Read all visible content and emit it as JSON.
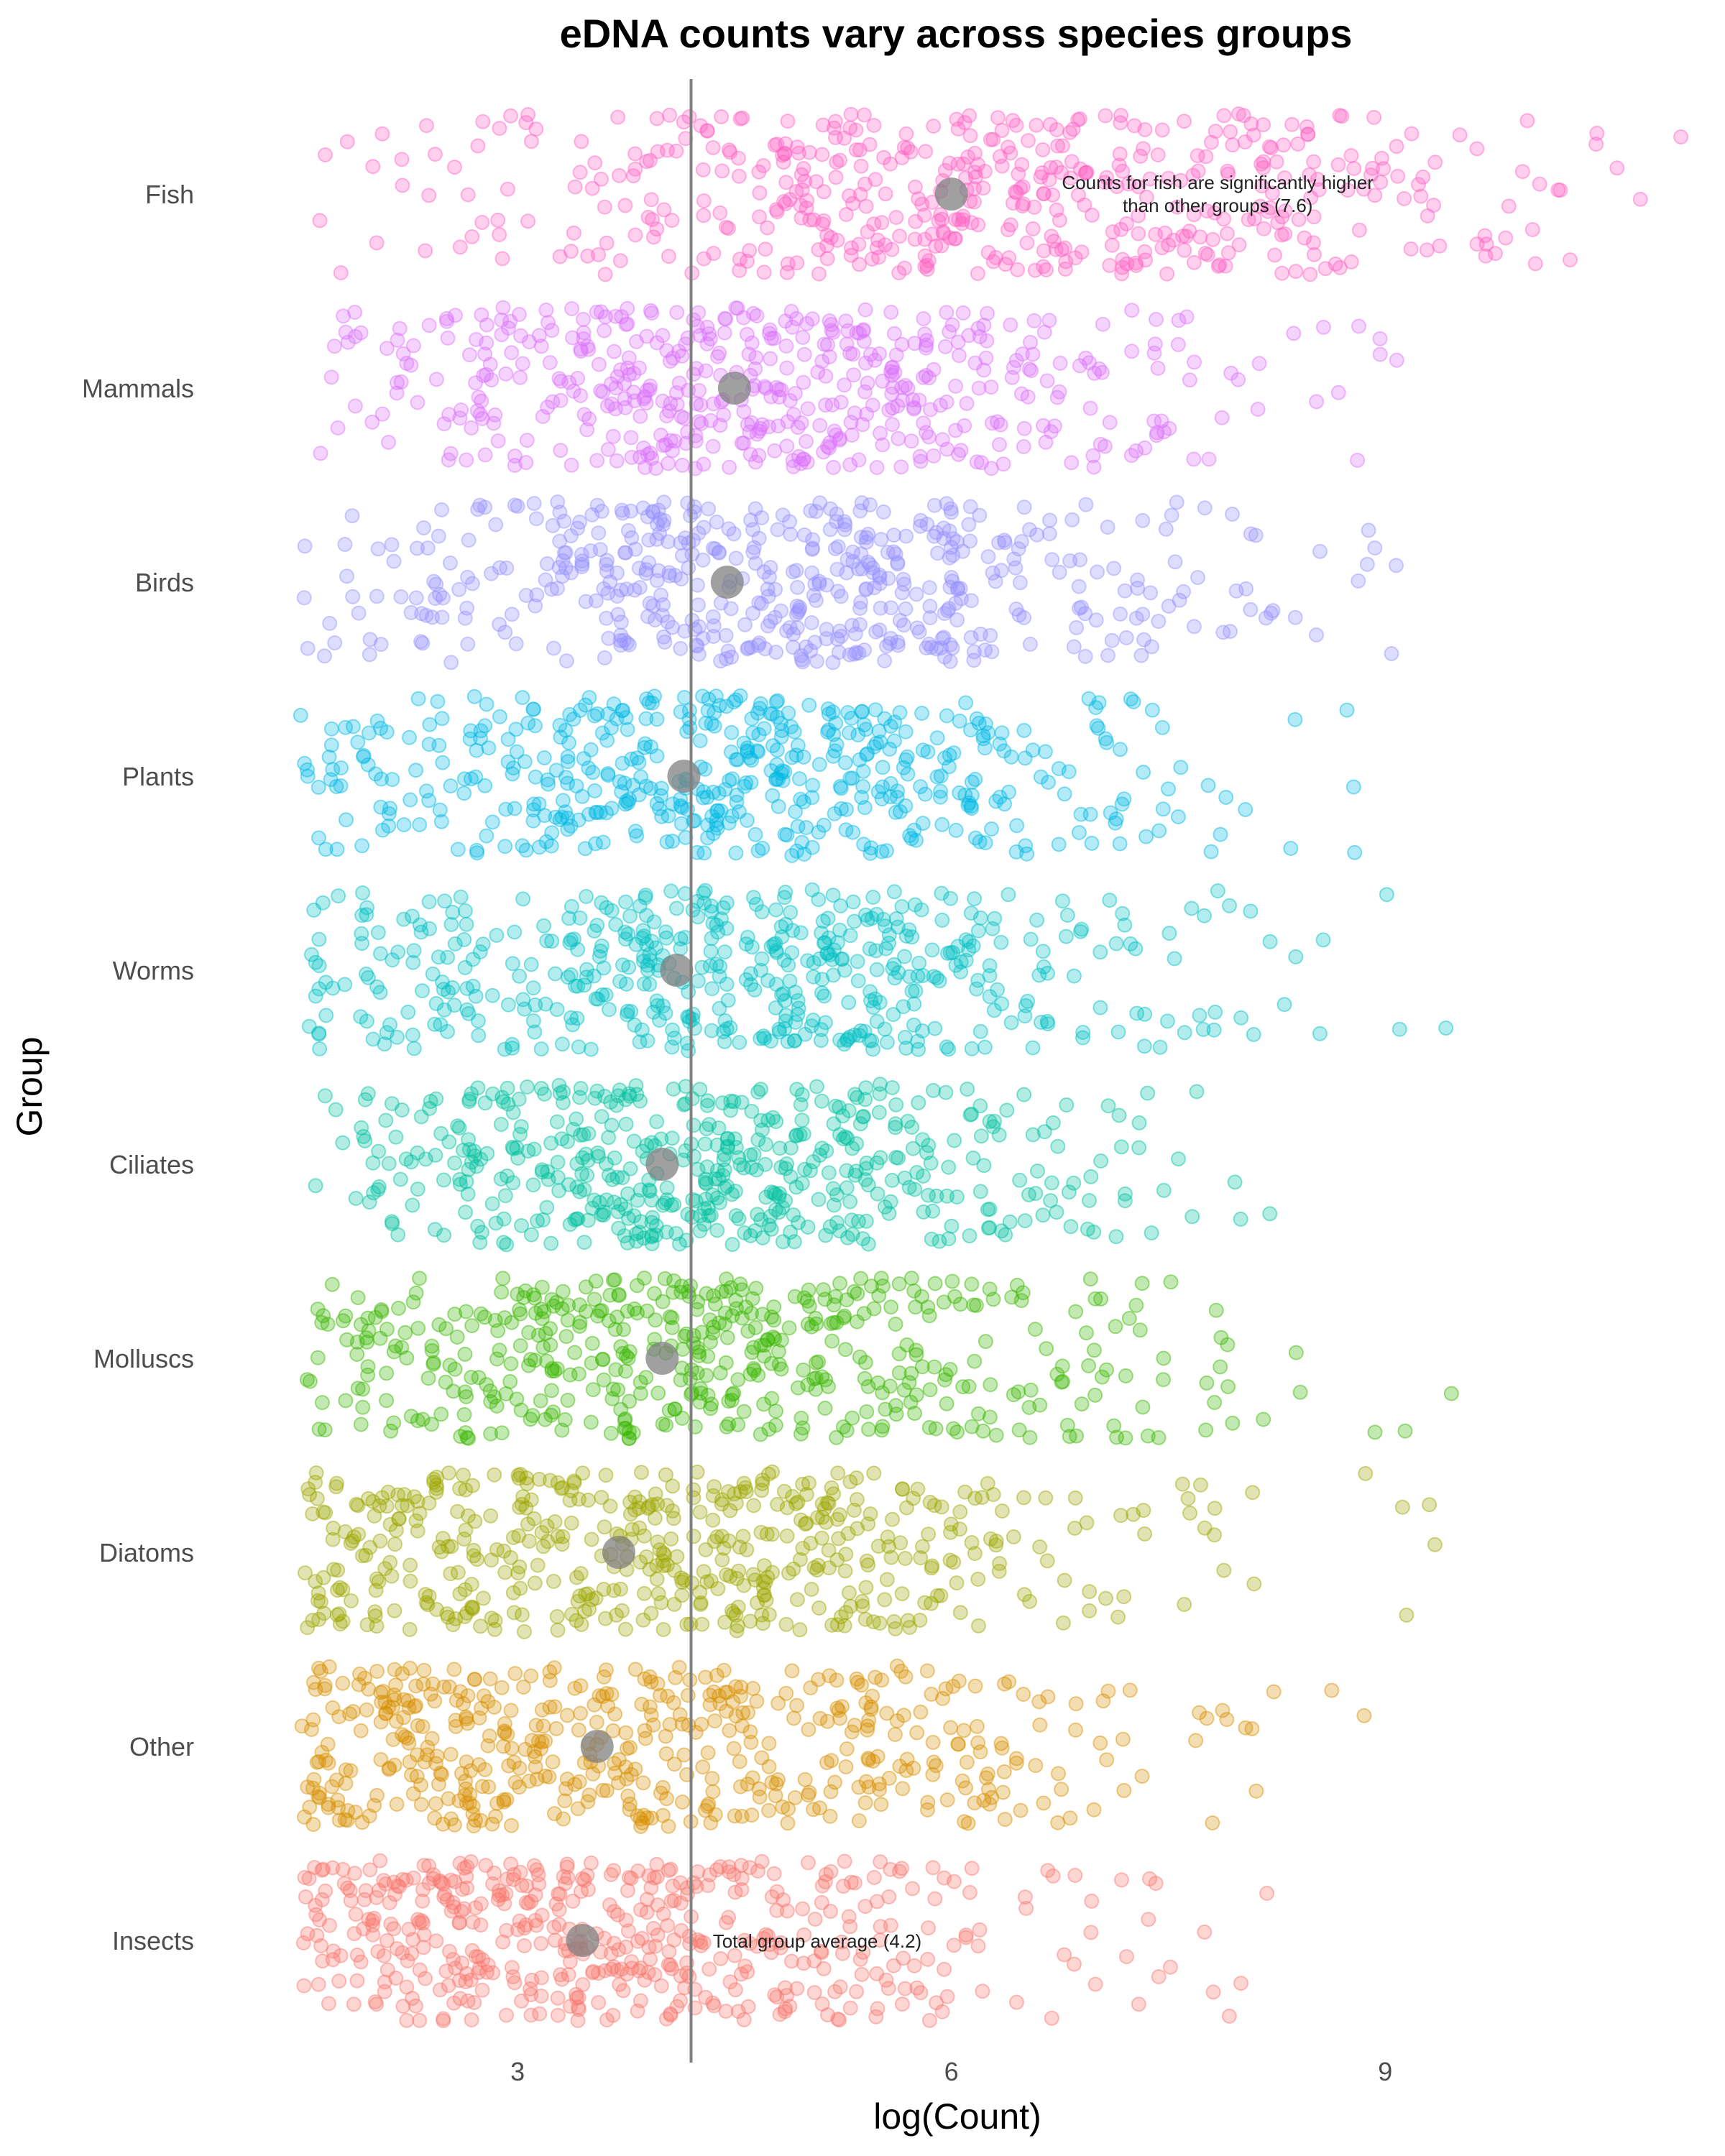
{
  "chart_data": {
    "type": "scatter",
    "subtype": "jittered strip plot with group means",
    "title": "eDNA counts vary across species groups",
    "xlabel": "log(Count)",
    "ylabel": "Group",
    "xlim": [
      1.3,
      11.2
    ],
    "x_ticks": [
      3,
      6,
      9
    ],
    "grid": false,
    "categories": [
      "Fish",
      "Mammals",
      "Birds",
      "Plants",
      "Worms",
      "Ciliates",
      "Molluscs",
      "Diatoms",
      "Other",
      "Insects"
    ],
    "series": [
      {
        "name": "Fish",
        "color": "#FF61C3",
        "mean": 6.0,
        "n": 500,
        "x_min": 1.6,
        "x_max": 11.1
      },
      {
        "name": "Mammals",
        "color": "#DB72FB",
        "mean": 4.5,
        "n": 500,
        "x_min": 1.6,
        "x_max": 9.4
      },
      {
        "name": "Birds",
        "color": "#9590FF",
        "mean": 4.45,
        "n": 500,
        "x_min": 1.5,
        "x_max": 9.1
      },
      {
        "name": "Plants",
        "color": "#00B9E3",
        "mean": 4.15,
        "n": 500,
        "x_min": 1.5,
        "x_max": 9.4
      },
      {
        "name": "Worms",
        "color": "#00BFC4",
        "mean": 4.1,
        "n": 500,
        "x_min": 1.5,
        "x_max": 9.9
      },
      {
        "name": "Ciliates",
        "color": "#00C19F",
        "mean": 4.0,
        "n": 500,
        "x_min": 1.6,
        "x_max": 8.3
      },
      {
        "name": "Molluscs",
        "color": "#39B600",
        "mean": 4.0,
        "n": 500,
        "x_min": 1.5,
        "x_max": 9.5
      },
      {
        "name": "Diatoms",
        "color": "#9DA700",
        "mean": 3.7,
        "n": 500,
        "x_min": 1.5,
        "x_max": 9.9
      },
      {
        "name": "Other",
        "color": "#D89000",
        "mean": 3.55,
        "n": 500,
        "x_min": 1.5,
        "x_max": 10.0
      },
      {
        "name": "Insects",
        "color": "#F8766D",
        "mean": 3.45,
        "n": 500,
        "x_min": 1.5,
        "x_max": 9.1
      }
    ],
    "reference_line": {
      "x": 4.2,
      "color": "#808080"
    },
    "mean_marker_color": "#808080",
    "annotations": [
      {
        "group": "Fish",
        "x": 6.4,
        "lines": [
          "Counts for fish are significantly higher",
          "than other groups (7.6)"
        ]
      },
      {
        "group": "Insects",
        "x": 4.35,
        "lines": [
          "Total group average (4.2)"
        ]
      }
    ]
  }
}
